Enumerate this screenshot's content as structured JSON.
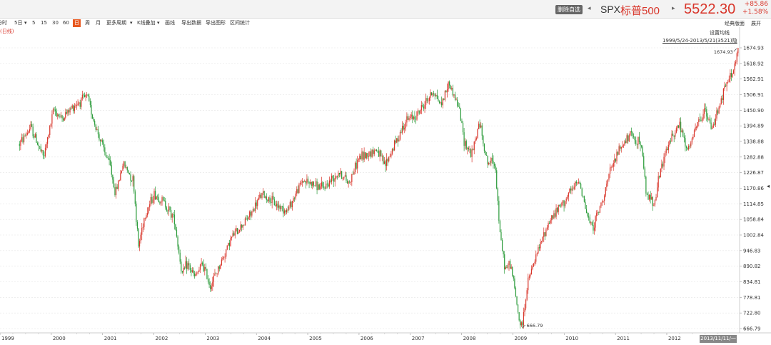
{
  "header": {
    "remove_label": "删除自选",
    "prev_icon": "◂",
    "next_icon": "▸",
    "symbol": "SPX",
    "name": "标普500",
    "price": "5522.30",
    "change": "+85.86",
    "change_pct": "+1.58%"
  },
  "toolbar": {
    "items": [
      "分时",
      "5日",
      "▾",
      "5",
      "15",
      "30",
      "60",
      "日",
      "周",
      "月",
      "更多周期",
      "▾",
      "K线叠加",
      "▾",
      "画线",
      "导出数据",
      "导出图形",
      "区间统计"
    ],
    "active": "日",
    "right_items": [
      "经典版面",
      "展开"
    ]
  },
  "chart_note": "(日线)",
  "set_ma_label": "设置均线",
  "range_label": "1999/5/24-2013/5/21(3521)",
  "range_toggle": "隐",
  "cursor_label": "2013/11/11/一",
  "chart_data": {
    "type": "candlestick",
    "title": "",
    "xlabel": "",
    "ylabel": "",
    "ylim": [
      666.79,
      1674.93
    ],
    "y_ticks": [
      "1674.93",
      "1618.92",
      "1562.91",
      "1506.91",
      "1450.90",
      "1394.89",
      "1338.88",
      "1282.88",
      "1226.87",
      "1170.86",
      "1114.85",
      "1058.84",
      "1002.84",
      "946.83",
      "890.82",
      "834.81",
      "778.81",
      "722.80",
      "666.79"
    ],
    "x_ticks": [
      "1999",
      "2000",
      "2001",
      "2002",
      "2003",
      "2004",
      "2005",
      "2006",
      "2007",
      "2008",
      "2009",
      "2010",
      "2011",
      "2012"
    ],
    "max_label": "1674.93",
    "min_label": "666.79",
    "up_color": "#d8352a",
    "down_color": "#2b9b3a",
    "trend": [
      {
        "x": 1999.38,
        "y": 1330
      },
      {
        "x": 1999.6,
        "y": 1390
      },
      {
        "x": 1999.85,
        "y": 1280
      },
      {
        "x": 2000.05,
        "y": 1455
      },
      {
        "x": 2000.2,
        "y": 1420
      },
      {
        "x": 2000.45,
        "y": 1470
      },
      {
        "x": 2000.7,
        "y": 1500
      },
      {
        "x": 2000.85,
        "y": 1400
      },
      {
        "x": 2001.0,
        "y": 1320
      },
      {
        "x": 2001.15,
        "y": 1250
      },
      {
        "x": 2001.25,
        "y": 1150
      },
      {
        "x": 2001.4,
        "y": 1260
      },
      {
        "x": 2001.6,
        "y": 1200
      },
      {
        "x": 2001.7,
        "y": 960
      },
      {
        "x": 2001.8,
        "y": 1060
      },
      {
        "x": 2002.0,
        "y": 1150
      },
      {
        "x": 2002.2,
        "y": 1120
      },
      {
        "x": 2002.4,
        "y": 1060
      },
      {
        "x": 2002.55,
        "y": 860
      },
      {
        "x": 2002.65,
        "y": 900
      },
      {
        "x": 2002.8,
        "y": 850
      },
      {
        "x": 2002.95,
        "y": 900
      },
      {
        "x": 2003.1,
        "y": 820
      },
      {
        "x": 2003.3,
        "y": 900
      },
      {
        "x": 2003.5,
        "y": 990
      },
      {
        "x": 2003.9,
        "y": 1080
      },
      {
        "x": 2004.1,
        "y": 1150
      },
      {
        "x": 2004.4,
        "y": 1110
      },
      {
        "x": 2004.6,
        "y": 1090
      },
      {
        "x": 2004.9,
        "y": 1200
      },
      {
        "x": 2005.3,
        "y": 1170
      },
      {
        "x": 2005.6,
        "y": 1230
      },
      {
        "x": 2005.8,
        "y": 1190
      },
      {
        "x": 2006.0,
        "y": 1280
      },
      {
        "x": 2006.35,
        "y": 1310
      },
      {
        "x": 2006.5,
        "y": 1250
      },
      {
        "x": 2006.9,
        "y": 1410
      },
      {
        "x": 2007.15,
        "y": 1440
      },
      {
        "x": 2007.45,
        "y": 1520
      },
      {
        "x": 2007.6,
        "y": 1470
      },
      {
        "x": 2007.75,
        "y": 1550
      },
      {
        "x": 2007.95,
        "y": 1460
      },
      {
        "x": 2008.05,
        "y": 1340
      },
      {
        "x": 2008.2,
        "y": 1290
      },
      {
        "x": 2008.35,
        "y": 1410
      },
      {
        "x": 2008.5,
        "y": 1260
      },
      {
        "x": 2008.65,
        "y": 1270
      },
      {
        "x": 2008.75,
        "y": 1000
      },
      {
        "x": 2008.85,
        "y": 880
      },
      {
        "x": 2008.95,
        "y": 900
      },
      {
        "x": 2009.0,
        "y": 850
      },
      {
        "x": 2009.12,
        "y": 700
      },
      {
        "x": 2009.17,
        "y": 666.79
      },
      {
        "x": 2009.3,
        "y": 840
      },
      {
        "x": 2009.5,
        "y": 950
      },
      {
        "x": 2009.7,
        "y": 1050
      },
      {
        "x": 2009.9,
        "y": 1100
      },
      {
        "x": 2010.1,
        "y": 1150
      },
      {
        "x": 2010.3,
        "y": 1200
      },
      {
        "x": 2010.45,
        "y": 1070
      },
      {
        "x": 2010.55,
        "y": 1030
      },
      {
        "x": 2010.7,
        "y": 1100
      },
      {
        "x": 2010.9,
        "y": 1230
      },
      {
        "x": 2011.1,
        "y": 1320
      },
      {
        "x": 2011.3,
        "y": 1360
      },
      {
        "x": 2011.5,
        "y": 1330
      },
      {
        "x": 2011.6,
        "y": 1150
      },
      {
        "x": 2011.75,
        "y": 1120
      },
      {
        "x": 2011.9,
        "y": 1250
      },
      {
        "x": 2012.1,
        "y": 1360
      },
      {
        "x": 2012.25,
        "y": 1400
      },
      {
        "x": 2012.4,
        "y": 1300
      },
      {
        "x": 2012.6,
        "y": 1400
      },
      {
        "x": 2012.75,
        "y": 1450
      },
      {
        "x": 2012.88,
        "y": 1380
      },
      {
        "x": 2013.0,
        "y": 1460
      },
      {
        "x": 2013.2,
        "y": 1560
      },
      {
        "x": 2013.3,
        "y": 1590
      },
      {
        "x": 2013.39,
        "y": 1674.93
      }
    ]
  }
}
